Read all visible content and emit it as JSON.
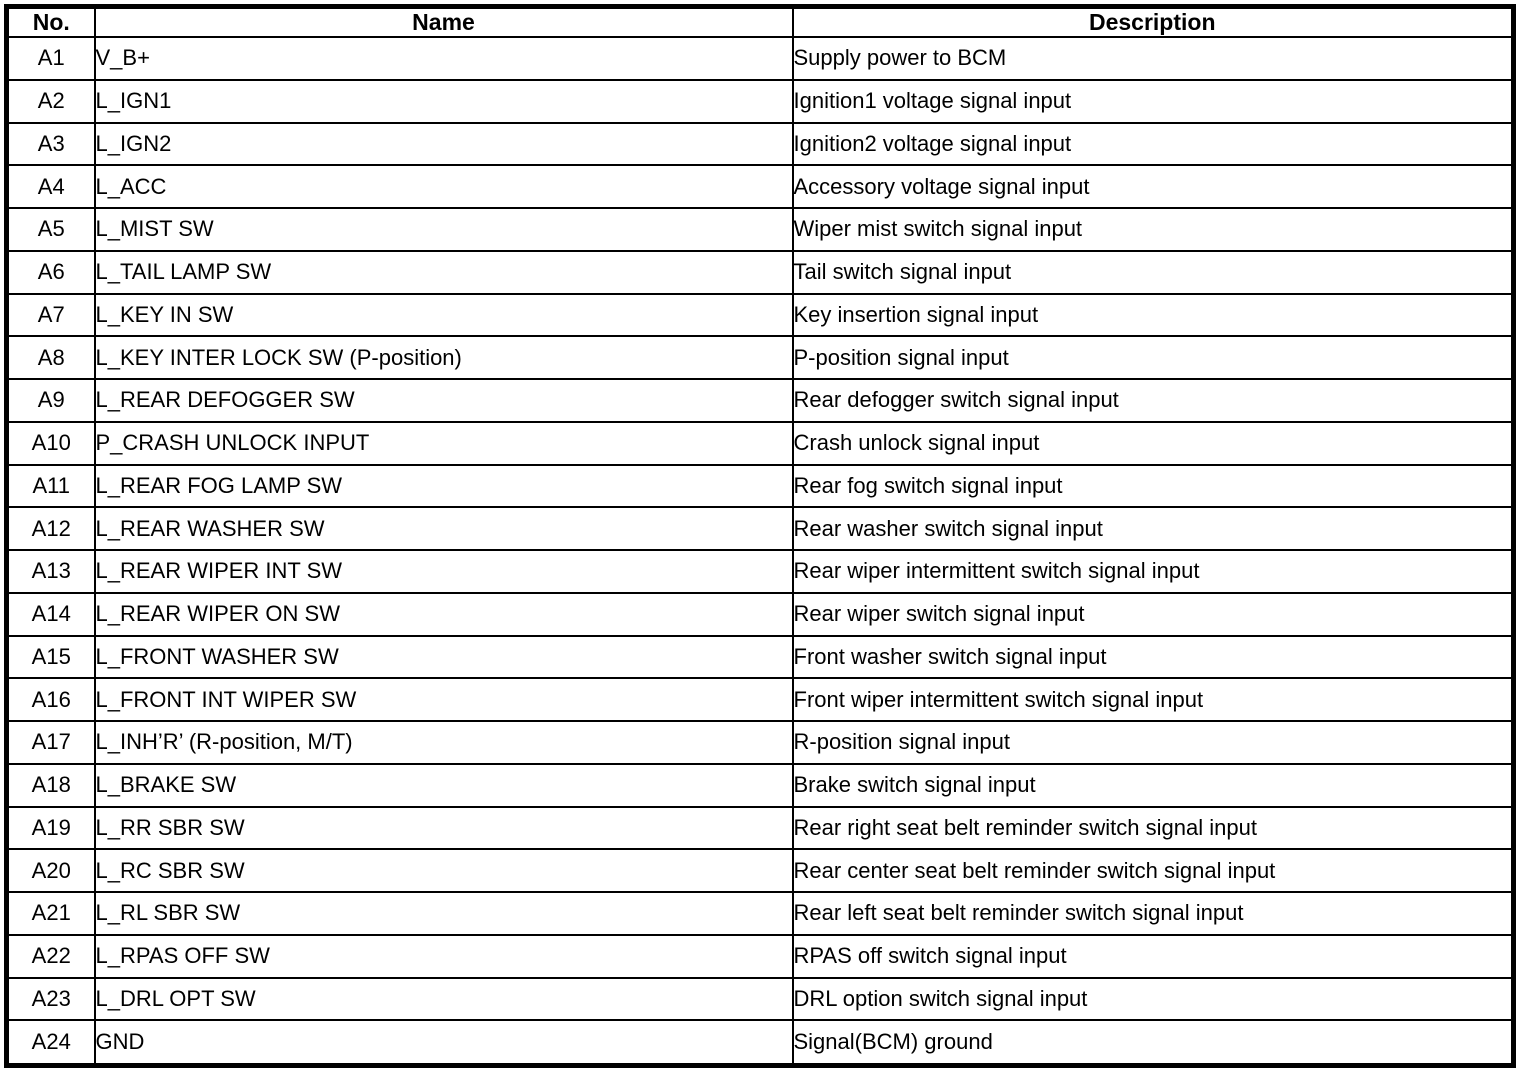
{
  "table": {
    "columns": {
      "no": "No.",
      "name": "Name",
      "desc": "Description"
    },
    "rows": [
      {
        "no": "A1",
        "name": "V_B+",
        "desc": "Supply power to BCM"
      },
      {
        "no": "A2",
        "name": "L_IGN1",
        "desc": "Ignition1 voltage signal input"
      },
      {
        "no": "A3",
        "name": "L_IGN2",
        "desc": "Ignition2 voltage signal input"
      },
      {
        "no": "A4",
        "name": "L_ACC",
        "desc": "Accessory voltage signal input"
      },
      {
        "no": "A5",
        "name": "L_MIST SW",
        "desc": "Wiper mist switch signal input"
      },
      {
        "no": "A6",
        "name": "L_TAIL LAMP SW",
        "desc": "Tail switch signal input"
      },
      {
        "no": "A7",
        "name": "L_KEY IN SW",
        "desc": "Key insertion signal input"
      },
      {
        "no": "A8",
        "name": "L_KEY INTER LOCK SW (P-position)",
        "desc": "P-position signal input"
      },
      {
        "no": "A9",
        "name": "L_REAR DEFOGGER SW",
        "desc": "Rear defogger switch signal input"
      },
      {
        "no": "A10",
        "name": "P_CRASH UNLOCK INPUT",
        "desc": "Crash unlock signal input"
      },
      {
        "no": "A11",
        "name": "L_REAR FOG LAMP SW",
        "desc": "Rear fog switch signal input"
      },
      {
        "no": "A12",
        "name": "L_REAR WASHER SW",
        "desc": "Rear washer switch signal input"
      },
      {
        "no": "A13",
        "name": "L_REAR WIPER INT SW",
        "desc": "Rear wiper intermittent switch signal input"
      },
      {
        "no": "A14",
        "name": "L_REAR WIPER ON SW",
        "desc": "Rear wiper switch signal input"
      },
      {
        "no": "A15",
        "name": "L_FRONT WASHER SW",
        "desc": "Front washer switch signal input"
      },
      {
        "no": "A16",
        "name": "L_FRONT INT WIPER SW",
        "desc": "Front wiper intermittent switch signal input"
      },
      {
        "no": "A17",
        "name": "L_INH’R’ (R-position, M/T)",
        "desc": "R-position signal input"
      },
      {
        "no": "A18",
        "name": "L_BRAKE SW",
        "desc": "Brake switch signal input"
      },
      {
        "no": "A19",
        "name": "L_RR SBR SW",
        "desc": "Rear right seat belt reminder switch signal input"
      },
      {
        "no": "A20",
        "name": "L_RC SBR SW",
        "desc": "Rear center seat belt reminder switch signal input"
      },
      {
        "no": "A21",
        "name": "L_RL SBR SW",
        "desc": "Rear left seat belt reminder switch signal input"
      },
      {
        "no": "A22",
        "name": "L_RPAS OFF SW",
        "desc": "RPAS off switch signal input"
      },
      {
        "no": "A23",
        "name": "L_DRL OPT SW",
        "desc": "DRL option switch signal input"
      },
      {
        "no": "A24",
        "name": "GND",
        "desc": "Signal(BCM) ground"
      }
    ]
  }
}
